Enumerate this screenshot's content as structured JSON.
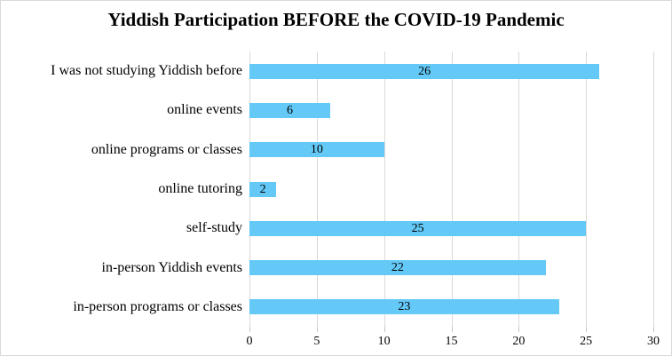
{
  "title": "Yiddish Participation BEFORE the COVID-19 Pandemic",
  "chart_data": {
    "type": "bar",
    "orientation": "horizontal",
    "title": "Yiddish Participation BEFORE the COVID-19 Pandemic",
    "categories": [
      "I was not studying Yiddish before",
      "online events",
      "online programs or classes",
      "online tutoring",
      "self-study",
      "in-person Yiddish events",
      "in-person programs or classes"
    ],
    "values": [
      26,
      6,
      10,
      2,
      25,
      22,
      23
    ],
    "data_labels": [
      "26",
      "6",
      "10",
      "2",
      "25",
      "22",
      "23"
    ],
    "xlabel": "",
    "ylabel": "",
    "xlim": [
      0,
      30
    ],
    "xticks": [
      0,
      5,
      10,
      15,
      20,
      25,
      30
    ],
    "grid": true,
    "legend": false,
    "colors": {
      "bar_fill": "#64c9f7",
      "gridline": "#d9d9d9",
      "tick": "#c6c6c6",
      "text": "#000000",
      "frame_border": "#d9d9d9",
      "background": "#ffffff"
    }
  }
}
